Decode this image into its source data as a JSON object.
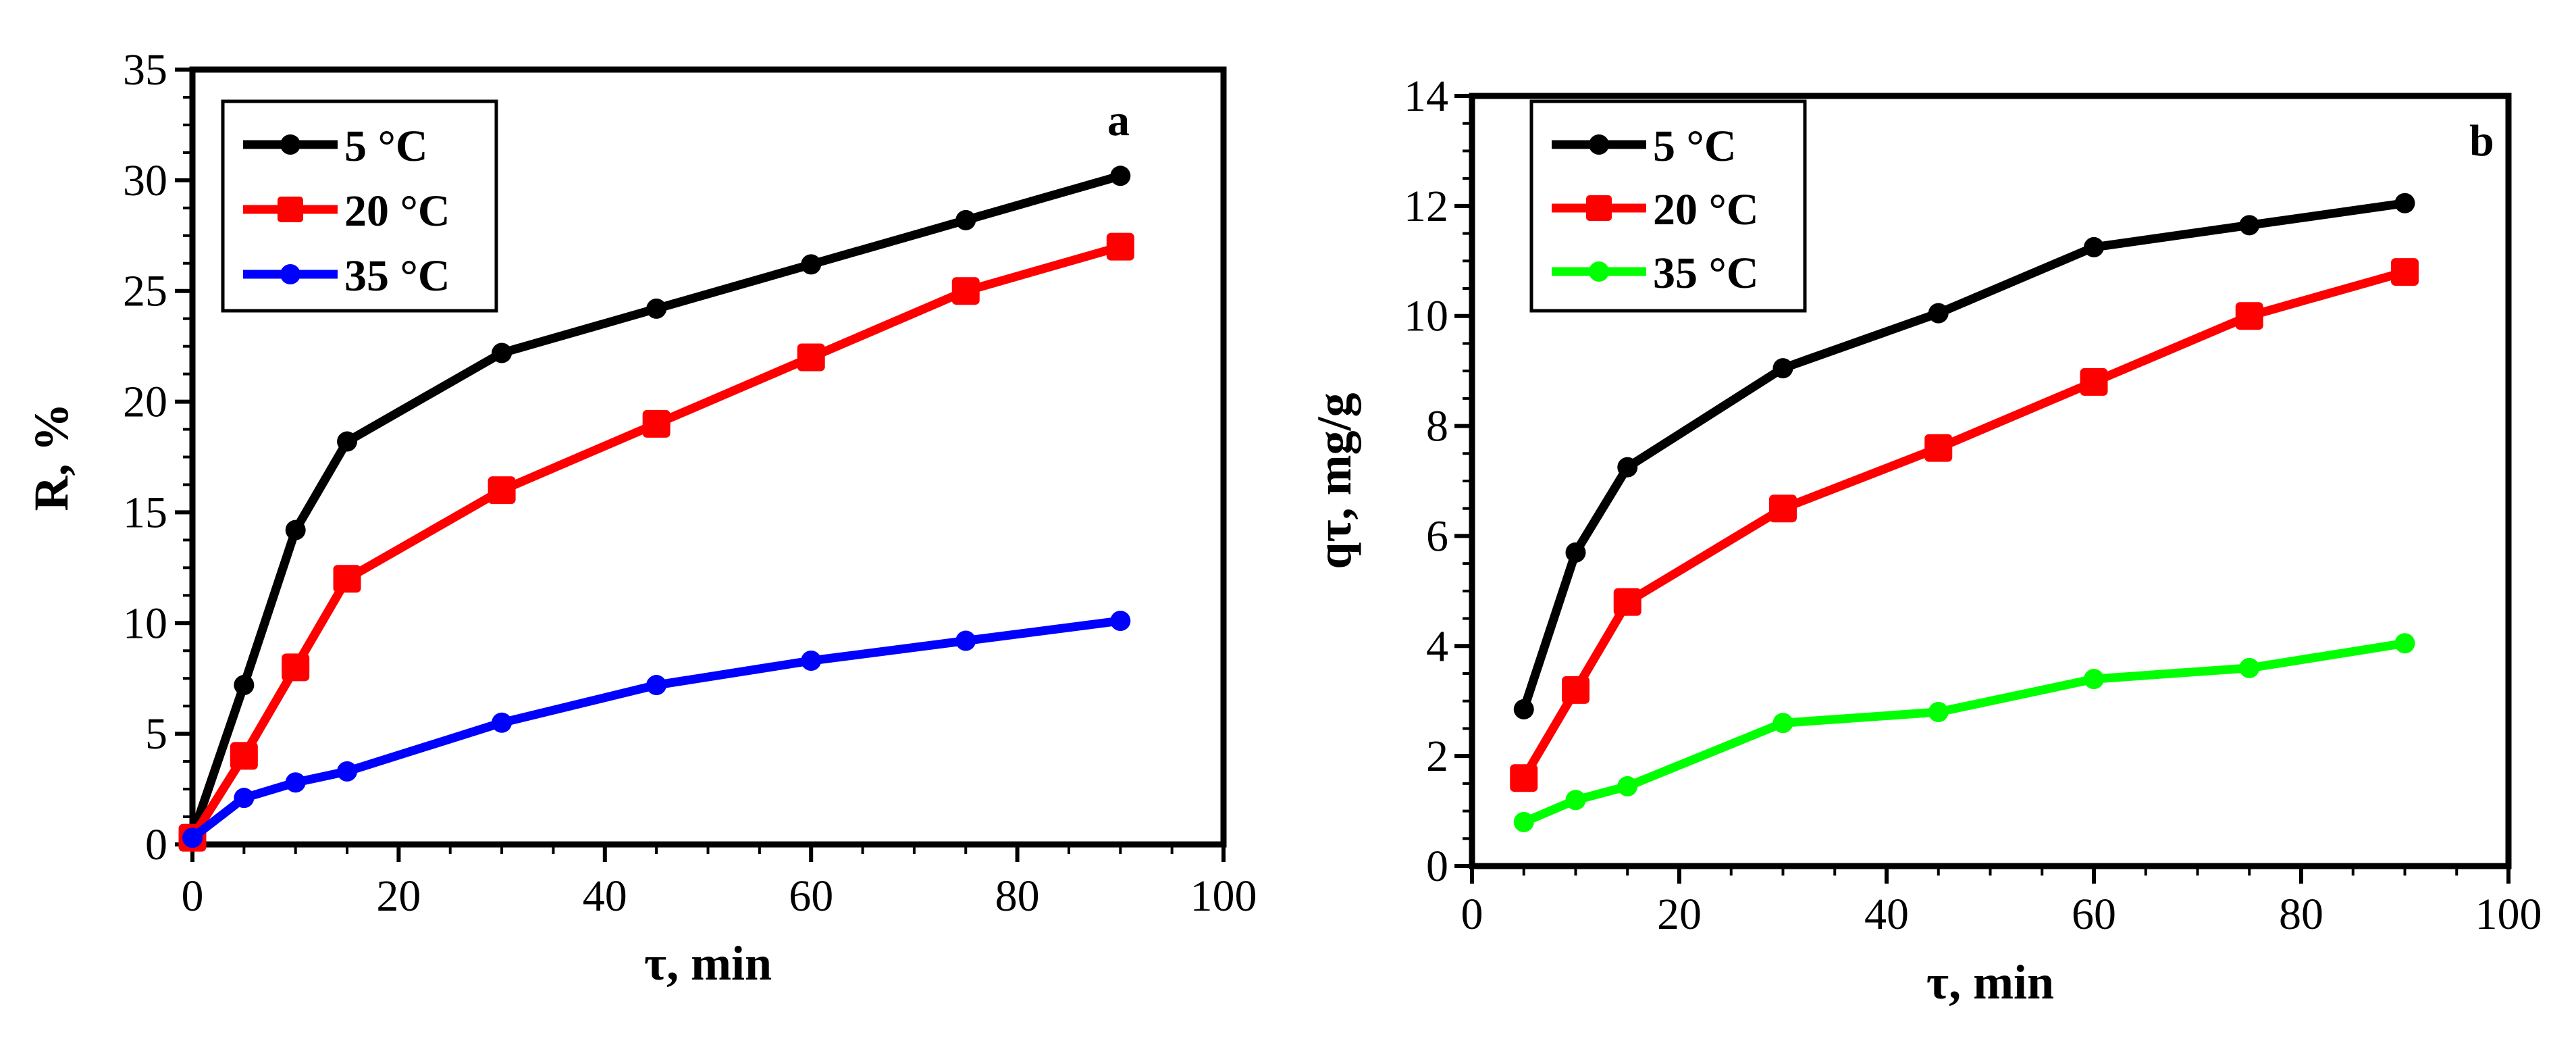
{
  "chart_data": [
    {
      "type": "line",
      "panel": "a",
      "xlabel": "τ, min",
      "ylabel": "R, %",
      "xlim": [
        0,
        100
      ],
      "ylim": [
        0,
        35
      ],
      "xticks": [
        0,
        20,
        40,
        60,
        80,
        100
      ],
      "yticks": [
        0,
        5,
        10,
        15,
        20,
        25,
        30,
        35
      ],
      "grid": false,
      "legend_position": "top-left",
      "series": [
        {
          "name": "5 °C",
          "color": "#000000",
          "marker": "circle",
          "x": [
            0,
            5,
            10,
            15,
            30,
            45,
            60,
            75,
            90
          ],
          "y": [
            0.4,
            7.2,
            14.2,
            18.2,
            22.2,
            24.2,
            26.2,
            28.2,
            30.2
          ]
        },
        {
          "name": "20 °C",
          "color": "#ff0000",
          "marker": "square",
          "x": [
            0,
            5,
            10,
            15,
            30,
            45,
            60,
            75,
            90
          ],
          "y": [
            0.3,
            4.0,
            8.0,
            12.0,
            16.0,
            19.0,
            22.0,
            25.0,
            27.0
          ]
        },
        {
          "name": "35 °C",
          "color": "#0000ff",
          "marker": "circle",
          "x": [
            0,
            5,
            10,
            15,
            30,
            45,
            60,
            75,
            90
          ],
          "y": [
            0.3,
            2.1,
            2.8,
            3.3,
            5.5,
            7.2,
            8.3,
            9.2,
            10.1
          ]
        }
      ]
    },
    {
      "type": "line",
      "panel": "b",
      "xlabel": "τ, min",
      "ylabel": "qτ, mg/g",
      "xlim": [
        0,
        100
      ],
      "ylim": [
        0,
        14
      ],
      "xticks": [
        0,
        20,
        40,
        60,
        80,
        100
      ],
      "yticks": [
        0,
        2,
        4,
        6,
        8,
        10,
        12,
        14
      ],
      "grid": false,
      "legend_position": "top-left",
      "series": [
        {
          "name": "5 °C",
          "color": "#000000",
          "marker": "circle",
          "x": [
            5,
            10,
            15,
            30,
            45,
            60,
            75,
            90
          ],
          "y": [
            2.85,
            5.7,
            7.25,
            9.05,
            10.05,
            11.25,
            11.65,
            12.05
          ]
        },
        {
          "name": "20 °C",
          "color": "#ff0000",
          "marker": "square",
          "x": [
            5,
            10,
            15,
            30,
            45,
            60,
            75,
            90
          ],
          "y": [
            1.6,
            3.2,
            4.8,
            6.5,
            7.6,
            8.8,
            10.0,
            10.8
          ]
        },
        {
          "name": "35 °C",
          "color": "#00ff00",
          "marker": "circle",
          "x": [
            5,
            10,
            15,
            30,
            45,
            60,
            75,
            90
          ],
          "y": [
            0.8,
            1.2,
            1.45,
            2.6,
            2.8,
            3.4,
            3.6,
            4.05
          ]
        }
      ]
    }
  ]
}
